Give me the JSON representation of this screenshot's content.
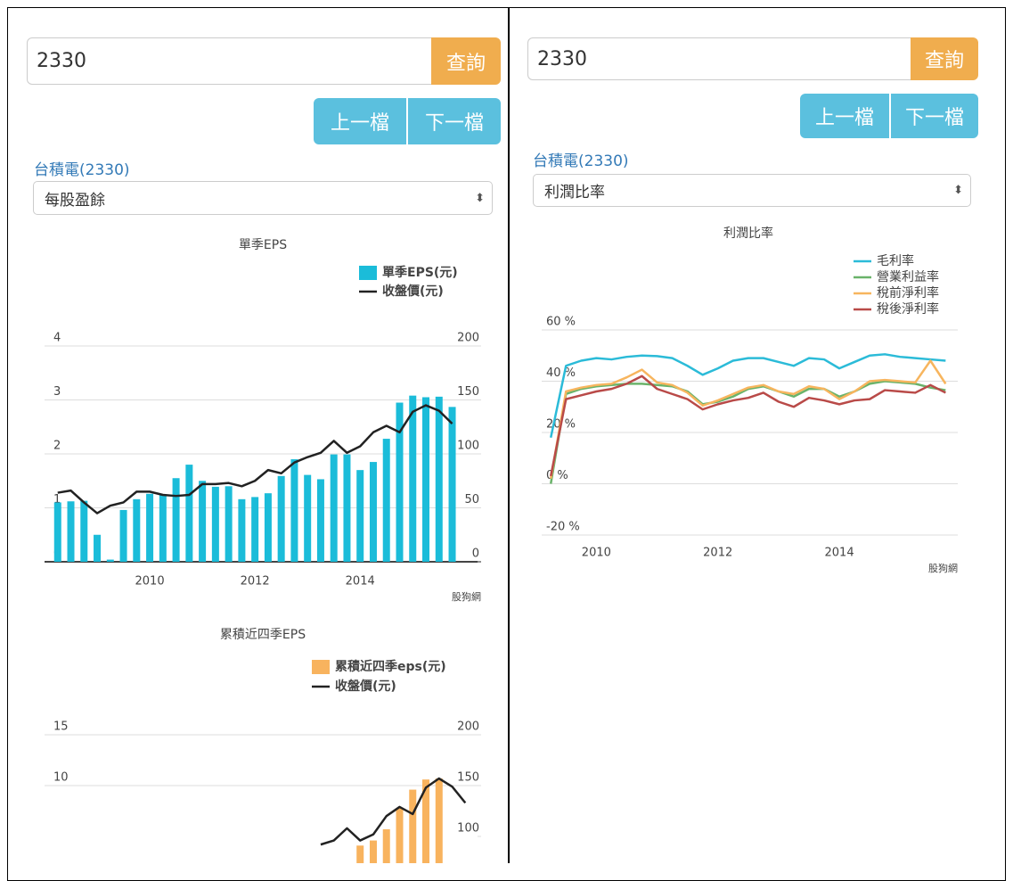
{
  "left_panel": {
    "search_input": "2330",
    "search_button": "查詢",
    "prev_button": "上一檔",
    "next_button": "下一檔",
    "stock_name": "台積電(2330)",
    "metric_select": "每股盈餘"
  },
  "right_panel": {
    "search_input": "2330",
    "search_button": "查詢",
    "prev_button": "上一檔",
    "next_button": "下一檔",
    "stock_name": "台積電(2330)",
    "metric_select": "利潤比率"
  },
  "chart_data": [
    {
      "type": "bar_line",
      "title": "單季EPS",
      "credit": "股狗網",
      "x": [
        2008.25,
        2008.5,
        2008.75,
        2009,
        2009.25,
        2009.5,
        2009.75,
        2010,
        2010.25,
        2010.5,
        2010.75,
        2011,
        2011.25,
        2011.5,
        2011.75,
        2012,
        2012.25,
        2012.5,
        2012.75,
        2013,
        2013.25,
        2013.5,
        2013.75,
        2014,
        2014.25,
        2014.5,
        2014.75,
        2015,
        2015.25,
        2015.5,
        2015.75
      ],
      "series": [
        {
          "name": "單季EPS(元)",
          "type": "bar",
          "color": "#1bbcd9",
          "values": [
            1.1,
            1.12,
            1.13,
            0.5,
            0.04,
            0.96,
            1.16,
            1.26,
            1.25,
            1.55,
            1.8,
            1.5,
            1.39,
            1.4,
            1.16,
            1.2,
            1.27,
            1.59,
            1.9,
            1.61,
            1.53,
            1.99,
            1.99,
            1.7,
            1.85,
            2.28,
            2.95,
            3.08,
            3.05,
            3.06,
            2.87
          ]
        },
        {
          "name": "收盤價(元)",
          "type": "line",
          "color": "#222222",
          "axis": "y2",
          "values": [
            64,
            66,
            55,
            45,
            52,
            55,
            65,
            65,
            62,
            61,
            62,
            72,
            72,
            73,
            70,
            75,
            85,
            82,
            92,
            97,
            101,
            112,
            101,
            107,
            120,
            126,
            120,
            139,
            145,
            140,
            128
          ]
        }
      ],
      "xlim": [
        2008.0,
        2016.3
      ],
      "xticks": [
        2010,
        2012,
        2014
      ],
      "ylim": [
        0,
        4
      ],
      "yticks": [
        0,
        1,
        2,
        3,
        4
      ],
      "y2lim": [
        0,
        200
      ],
      "y2ticks": [
        0,
        50,
        100,
        150,
        200
      ],
      "grid": true
    },
    {
      "type": "bar_line",
      "title": "累積近四季EPS",
      "series": [
        {
          "name": "累積近四季eps(元)",
          "type": "bar",
          "color": "#f8b35e",
          "x": [
            2014,
            2014.25,
            2014.5,
            2014.75,
            2015,
            2015.25,
            2015.5
          ],
          "values": [
            4.1,
            4.6,
            5.7,
            7.8,
            9.6,
            10.6,
            10.7
          ]
        },
        {
          "name": "收盤價(元)",
          "type": "line",
          "color": "#222222",
          "axis": "y2",
          "x": [
            2013.25,
            2013.5,
            2013.75,
            2014,
            2014.25,
            2014.5,
            2014.75,
            2015,
            2015.25,
            2015.5,
            2015.75,
            2016
          ],
          "values": [
            92,
            96,
            108,
            96,
            102,
            120,
            129,
            122,
            148,
            157,
            149,
            133
          ]
        }
      ],
      "xlim": [
        2008.0,
        2016.3
      ],
      "ylim": [
        0,
        15
      ],
      "yticks": [
        10,
        15
      ],
      "y2lim": [
        50,
        200
      ],
      "y2ticks": [
        100,
        150,
        200
      ],
      "grid": true
    },
    {
      "type": "line",
      "title": "利潤比率",
      "credit": "股狗網",
      "x": [
        2009.25,
        2009.5,
        2009.75,
        2010,
        2010.25,
        2010.5,
        2010.75,
        2011,
        2011.25,
        2011.5,
        2011.75,
        2012,
        2012.25,
        2012.5,
        2012.75,
        2013,
        2013.25,
        2013.5,
        2013.75,
        2014,
        2014.25,
        2014.5,
        2014.75,
        2015,
        2015.25,
        2015.5,
        2015.75
      ],
      "series": [
        {
          "name": "毛利率",
          "color": "#2bbbd8",
          "values": [
            18,
            46,
            48,
            49,
            48.5,
            49.5,
            50,
            49.8,
            49,
            46,
            42.5,
            45,
            48,
            49,
            49,
            47.5,
            46,
            49,
            48.5,
            45,
            47.5,
            50,
            50.5,
            49.5,
            49,
            48.5,
            48
          ]
        },
        {
          "name": "營業利益率",
          "color": "#6ab36a",
          "values": [
            0,
            35,
            37,
            38,
            38.5,
            39,
            39,
            38.5,
            38,
            36,
            31,
            32,
            34,
            37,
            38,
            36,
            34,
            37,
            37,
            34,
            36,
            39,
            40,
            39.5,
            39,
            37.5,
            36.5
          ]
        },
        {
          "name": "稅前淨利率",
          "color": "#f7b55e",
          "values": [
            2,
            36,
            37.5,
            38.5,
            39,
            41.5,
            44.5,
            39.5,
            38.5,
            35.5,
            30.5,
            32.5,
            35,
            37.5,
            38.5,
            36,
            35,
            38,
            37,
            33,
            36,
            40,
            40.5,
            40,
            39.5,
            48,
            39
          ]
        },
        {
          "name": "稅後淨利率",
          "color": "#b94a48",
          "values": [
            3,
            33,
            34.5,
            36,
            37,
            39,
            42,
            37,
            35,
            33,
            29,
            31,
            32.5,
            33.5,
            35.5,
            32,
            30,
            33.5,
            32.5,
            31,
            32.5,
            33,
            36.5,
            36,
            35.5,
            38.5,
            35.5
          ]
        }
      ],
      "xlim": [
        2009.1,
        2015.95
      ],
      "xticks": [
        2010,
        2012,
        2014
      ],
      "ylim": [
        -20,
        60
      ],
      "yticks": [
        {
          "value": -20,
          "label": "-20 %"
        },
        {
          "value": 0,
          "label": "0 %"
        },
        {
          "value": 20,
          "label": "20 %"
        },
        {
          "value": 40,
          "label": "40 %"
        },
        {
          "value": 60,
          "label": "60 %"
        }
      ],
      "grid": true
    }
  ]
}
